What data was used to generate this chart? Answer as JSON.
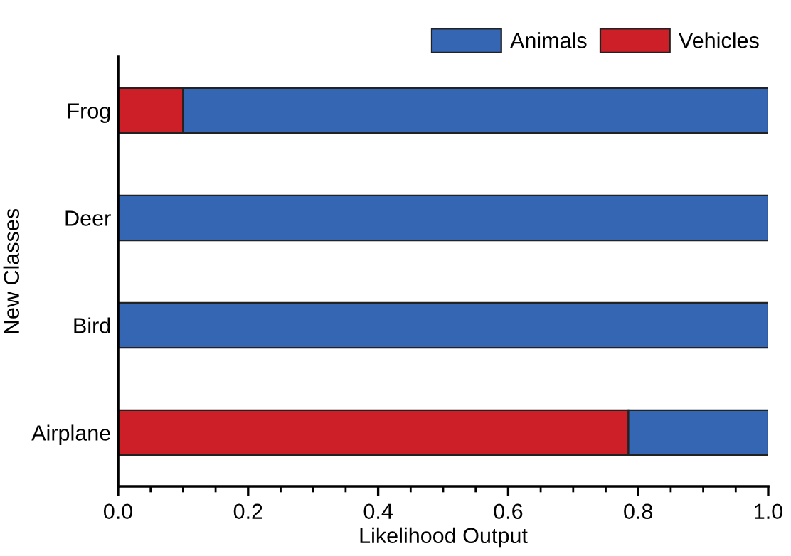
{
  "chart_data": {
    "type": "bar",
    "orientation": "horizontal",
    "stacked": true,
    "xlabel": "Likelihood Output",
    "ylabel": "New Classes",
    "categories": [
      "Frog",
      "Deer",
      "Bird",
      "Airplane"
    ],
    "series": [
      {
        "name": "Vehicles",
        "color": "#cc1f27",
        "values": [
          0.1,
          0,
          0,
          0.785
        ]
      },
      {
        "name": "Animals",
        "color": "#3566b4",
        "values": [
          0.9,
          1,
          1,
          0.215
        ]
      }
    ],
    "xlim": [
      0,
      1.0
    ],
    "xticks": [
      {
        "value": 0,
        "label": "0.0"
      },
      0.2,
      0.4,
      0.6,
      0.8,
      {
        "value": 1,
        "label": "1.0"
      }
    ],
    "grid": false,
    "legend": "top right"
  }
}
